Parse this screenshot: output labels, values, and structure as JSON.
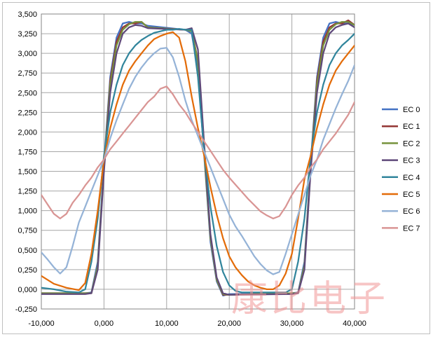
{
  "chart_data": {
    "type": "line",
    "title": "",
    "xlabel": "",
    "ylabel": "",
    "xlim": [
      -10000,
      40000
    ],
    "ylim": [
      -0.25,
      3.5
    ],
    "grid": true,
    "legend_position": "right",
    "x_ticks": [
      "-10,000",
      "0,000",
      "10,000",
      "20,000",
      "30,000",
      "40,000"
    ],
    "y_ticks": [
      "-0,250",
      "0,000",
      "0,250",
      "0,500",
      "0,750",
      "1,000",
      "1,250",
      "1,500",
      "1,750",
      "2,000",
      "2,250",
      "2,500",
      "2,750",
      "3,000",
      "3,250",
      "3,500"
    ],
    "series": [
      {
        "name": "EC 0",
        "color": "#4472C4",
        "x": [
          -10000,
          -3000,
          -2000,
          -1000,
          0,
          1000,
          2000,
          3000,
          4000,
          5000,
          6000,
          7000,
          13000,
          14000,
          15000,
          16000,
          17000,
          18000,
          19000,
          20000,
          30000,
          31000,
          32000,
          33000,
          34000,
          35000,
          36000,
          37000,
          38000,
          39000,
          40000
        ],
        "y": [
          -0.05,
          -0.05,
          -0.04,
          0.35,
          1.6,
          2.7,
          3.2,
          3.38,
          3.4,
          3.38,
          3.38,
          3.35,
          3.3,
          3.25,
          2.8,
          1.7,
          0.6,
          0.1,
          -0.08,
          -0.06,
          -0.05,
          -0.04,
          0.35,
          1.6,
          2.7,
          3.2,
          3.38,
          3.4,
          3.38,
          3.38,
          3.36
        ]
      },
      {
        "name": "EC 1",
        "color": "#943634",
        "x": [
          -10000,
          -3000,
          -2000,
          -1000,
          0,
          1000,
          2000,
          3000,
          4000,
          5000,
          6000,
          7000,
          13000,
          14000,
          15000,
          16000,
          17000,
          18000,
          19000,
          20000,
          30000,
          31000,
          32000,
          33000,
          34000,
          35000,
          36000,
          37000,
          38000,
          39000,
          40000
        ],
        "y": [
          -0.05,
          -0.05,
          -0.05,
          0.3,
          1.55,
          2.65,
          3.15,
          3.33,
          3.38,
          3.38,
          3.4,
          3.33,
          3.3,
          3.3,
          2.9,
          1.75,
          0.65,
          0.12,
          -0.07,
          -0.07,
          -0.05,
          -0.05,
          0.3,
          1.55,
          2.65,
          3.15,
          3.33,
          3.38,
          3.38,
          3.42,
          3.36
        ]
      },
      {
        "name": "EC 2",
        "color": "#76923C",
        "x": [
          -10000,
          -3000,
          -2000,
          -1000,
          0,
          1000,
          2000,
          3000,
          4000,
          5000,
          6000,
          7000,
          13000,
          14000,
          15000,
          16000,
          17000,
          18000,
          19000,
          20000,
          30000,
          31000,
          32000,
          33000,
          34000,
          35000,
          36000,
          37000,
          38000,
          39000,
          40000
        ],
        "y": [
          -0.05,
          -0.05,
          -0.05,
          0.3,
          1.55,
          2.6,
          3.1,
          3.3,
          3.37,
          3.4,
          3.4,
          3.33,
          3.3,
          3.28,
          2.9,
          1.75,
          0.65,
          0.12,
          -0.06,
          -0.07,
          -0.05,
          -0.05,
          0.3,
          1.55,
          2.6,
          3.1,
          3.3,
          3.37,
          3.4,
          3.4,
          3.36
        ]
      },
      {
        "name": "EC 3",
        "color": "#5F497A",
        "x": [
          -10000,
          -3000,
          -2000,
          -1000,
          0,
          1000,
          2000,
          3000,
          4000,
          5000,
          6000,
          7000,
          13000,
          14000,
          15000,
          16000,
          17000,
          18000,
          19000,
          20000,
          30000,
          31000,
          32000,
          33000,
          34000,
          35000,
          36000,
          37000,
          38000,
          39000,
          40000
        ],
        "y": [
          -0.06,
          -0.06,
          -0.05,
          0.25,
          1.5,
          2.5,
          3.0,
          3.25,
          3.33,
          3.36,
          3.35,
          3.32,
          3.3,
          3.32,
          3.05,
          1.85,
          0.7,
          0.15,
          -0.05,
          -0.07,
          -0.06,
          -0.05,
          0.25,
          1.5,
          2.5,
          3.0,
          3.25,
          3.33,
          3.36,
          3.38,
          3.33
        ]
      },
      {
        "name": "EC 4",
        "color": "#31859C",
        "x": [
          -10000,
          -8000,
          -6000,
          -4000,
          -3000,
          -2000,
          -1000,
          0,
          1000,
          2000,
          3000,
          4000,
          5000,
          6000,
          7000,
          8000,
          9000,
          10000,
          11000,
          12000,
          13000,
          14000,
          15000,
          16000,
          17000,
          18000,
          19000,
          20000,
          21000,
          22000,
          23000,
          24000,
          25000,
          26000,
          27000,
          28000,
          29000,
          30000,
          31000,
          32000,
          33000,
          34000,
          35000,
          36000,
          37000,
          38000,
          39000,
          40000
        ],
        "y": [
          0.02,
          0.0,
          -0.03,
          -0.04,
          0.0,
          0.35,
          0.9,
          1.7,
          2.25,
          2.6,
          2.85,
          3.0,
          3.1,
          3.17,
          3.22,
          3.26,
          3.28,
          3.3,
          3.3,
          3.31,
          3.3,
          3.3,
          2.7,
          1.75,
          1.05,
          0.55,
          0.22,
          0.05,
          -0.02,
          -0.04,
          -0.04,
          -0.04,
          -0.04,
          -0.04,
          -0.04,
          -0.04,
          -0.04,
          0.0,
          0.35,
          0.9,
          1.7,
          2.25,
          2.6,
          2.85,
          3.0,
          3.1,
          3.17,
          3.25
        ]
      },
      {
        "name": "EC 5",
        "color": "#E36C09",
        "x": [
          -10000,
          -8000,
          -6000,
          -4000,
          -3000,
          -2000,
          -1000,
          0,
          1000,
          2000,
          3000,
          4000,
          5000,
          6000,
          7000,
          8000,
          9000,
          10000,
          11000,
          12000,
          13000,
          14000,
          15000,
          16000,
          17000,
          18000,
          19000,
          20000,
          21000,
          22000,
          23000,
          24000,
          25000,
          26000,
          27000,
          28000,
          29000,
          30000,
          31000,
          32000,
          33000,
          34000,
          35000,
          36000,
          37000,
          38000,
          39000,
          40000
        ],
        "y": [
          0.17,
          0.07,
          0.02,
          -0.01,
          0.08,
          0.45,
          1.0,
          1.65,
          2.05,
          2.35,
          2.6,
          2.78,
          2.9,
          3.0,
          3.1,
          3.18,
          3.22,
          3.25,
          3.27,
          3.2,
          2.9,
          2.45,
          2.05,
          1.7,
          1.3,
          0.95,
          0.65,
          0.42,
          0.28,
          0.18,
          0.1,
          0.05,
          0.02,
          0.0,
          0.0,
          0.05,
          0.2,
          0.45,
          0.9,
          1.4,
          1.7,
          2.05,
          2.35,
          2.6,
          2.78,
          2.9,
          3.0,
          3.1
        ]
      },
      {
        "name": "EC 6",
        "color": "#95B3D7",
        "x": [
          -10000,
          -9000,
          -8000,
          -7000,
          -6000,
          -5000,
          -4000,
          -3000,
          -2000,
          -1000,
          0,
          1000,
          2000,
          3000,
          4000,
          5000,
          6000,
          7000,
          8000,
          9000,
          10000,
          11000,
          12000,
          13000,
          14000,
          15000,
          16000,
          17000,
          18000,
          19000,
          20000,
          21000,
          22000,
          23000,
          24000,
          25000,
          26000,
          27000,
          28000,
          29000,
          30000,
          31000,
          32000,
          33000,
          34000,
          35000,
          36000,
          37000,
          38000,
          39000,
          40000
        ],
        "y": [
          0.47,
          0.38,
          0.28,
          0.2,
          0.28,
          0.55,
          0.85,
          1.05,
          1.25,
          1.45,
          1.65,
          1.92,
          2.15,
          2.35,
          2.55,
          2.7,
          2.82,
          2.92,
          3.0,
          3.06,
          3.07,
          2.95,
          2.7,
          2.4,
          2.15,
          1.95,
          1.75,
          1.55,
          1.35,
          1.15,
          0.95,
          0.8,
          0.68,
          0.55,
          0.42,
          0.32,
          0.24,
          0.19,
          0.22,
          0.45,
          0.7,
          0.95,
          1.2,
          1.45,
          1.65,
          1.9,
          2.1,
          2.3,
          2.48,
          2.65,
          2.85
        ]
      },
      {
        "name": "EC 7",
        "color": "#D99594",
        "x": [
          -10000,
          -9000,
          -8000,
          -7000,
          -6000,
          -5000,
          -4000,
          -3000,
          -2000,
          -1000,
          0,
          1000,
          2000,
          3000,
          4000,
          5000,
          6000,
          7000,
          8000,
          9000,
          10000,
          11000,
          12000,
          13000,
          14000,
          15000,
          16000,
          17000,
          18000,
          19000,
          20000,
          21000,
          22000,
          23000,
          24000,
          25000,
          26000,
          27000,
          28000,
          29000,
          30000,
          31000,
          32000,
          33000,
          34000,
          35000,
          36000,
          37000,
          38000,
          39000,
          40000
        ],
        "y": [
          1.2,
          1.08,
          0.96,
          0.9,
          0.96,
          1.1,
          1.2,
          1.32,
          1.42,
          1.55,
          1.65,
          1.78,
          1.88,
          1.98,
          2.08,
          2.18,
          2.28,
          2.38,
          2.45,
          2.55,
          2.58,
          2.48,
          2.35,
          2.25,
          2.12,
          2.0,
          1.88,
          1.76,
          1.64,
          1.52,
          1.42,
          1.33,
          1.24,
          1.15,
          1.07,
          0.99,
          0.94,
          0.9,
          0.93,
          1.05,
          1.2,
          1.32,
          1.42,
          1.55,
          1.65,
          1.78,
          1.88,
          1.98,
          2.1,
          2.22,
          2.38
        ]
      }
    ]
  },
  "watermark": {
    "text": "康比电子"
  }
}
